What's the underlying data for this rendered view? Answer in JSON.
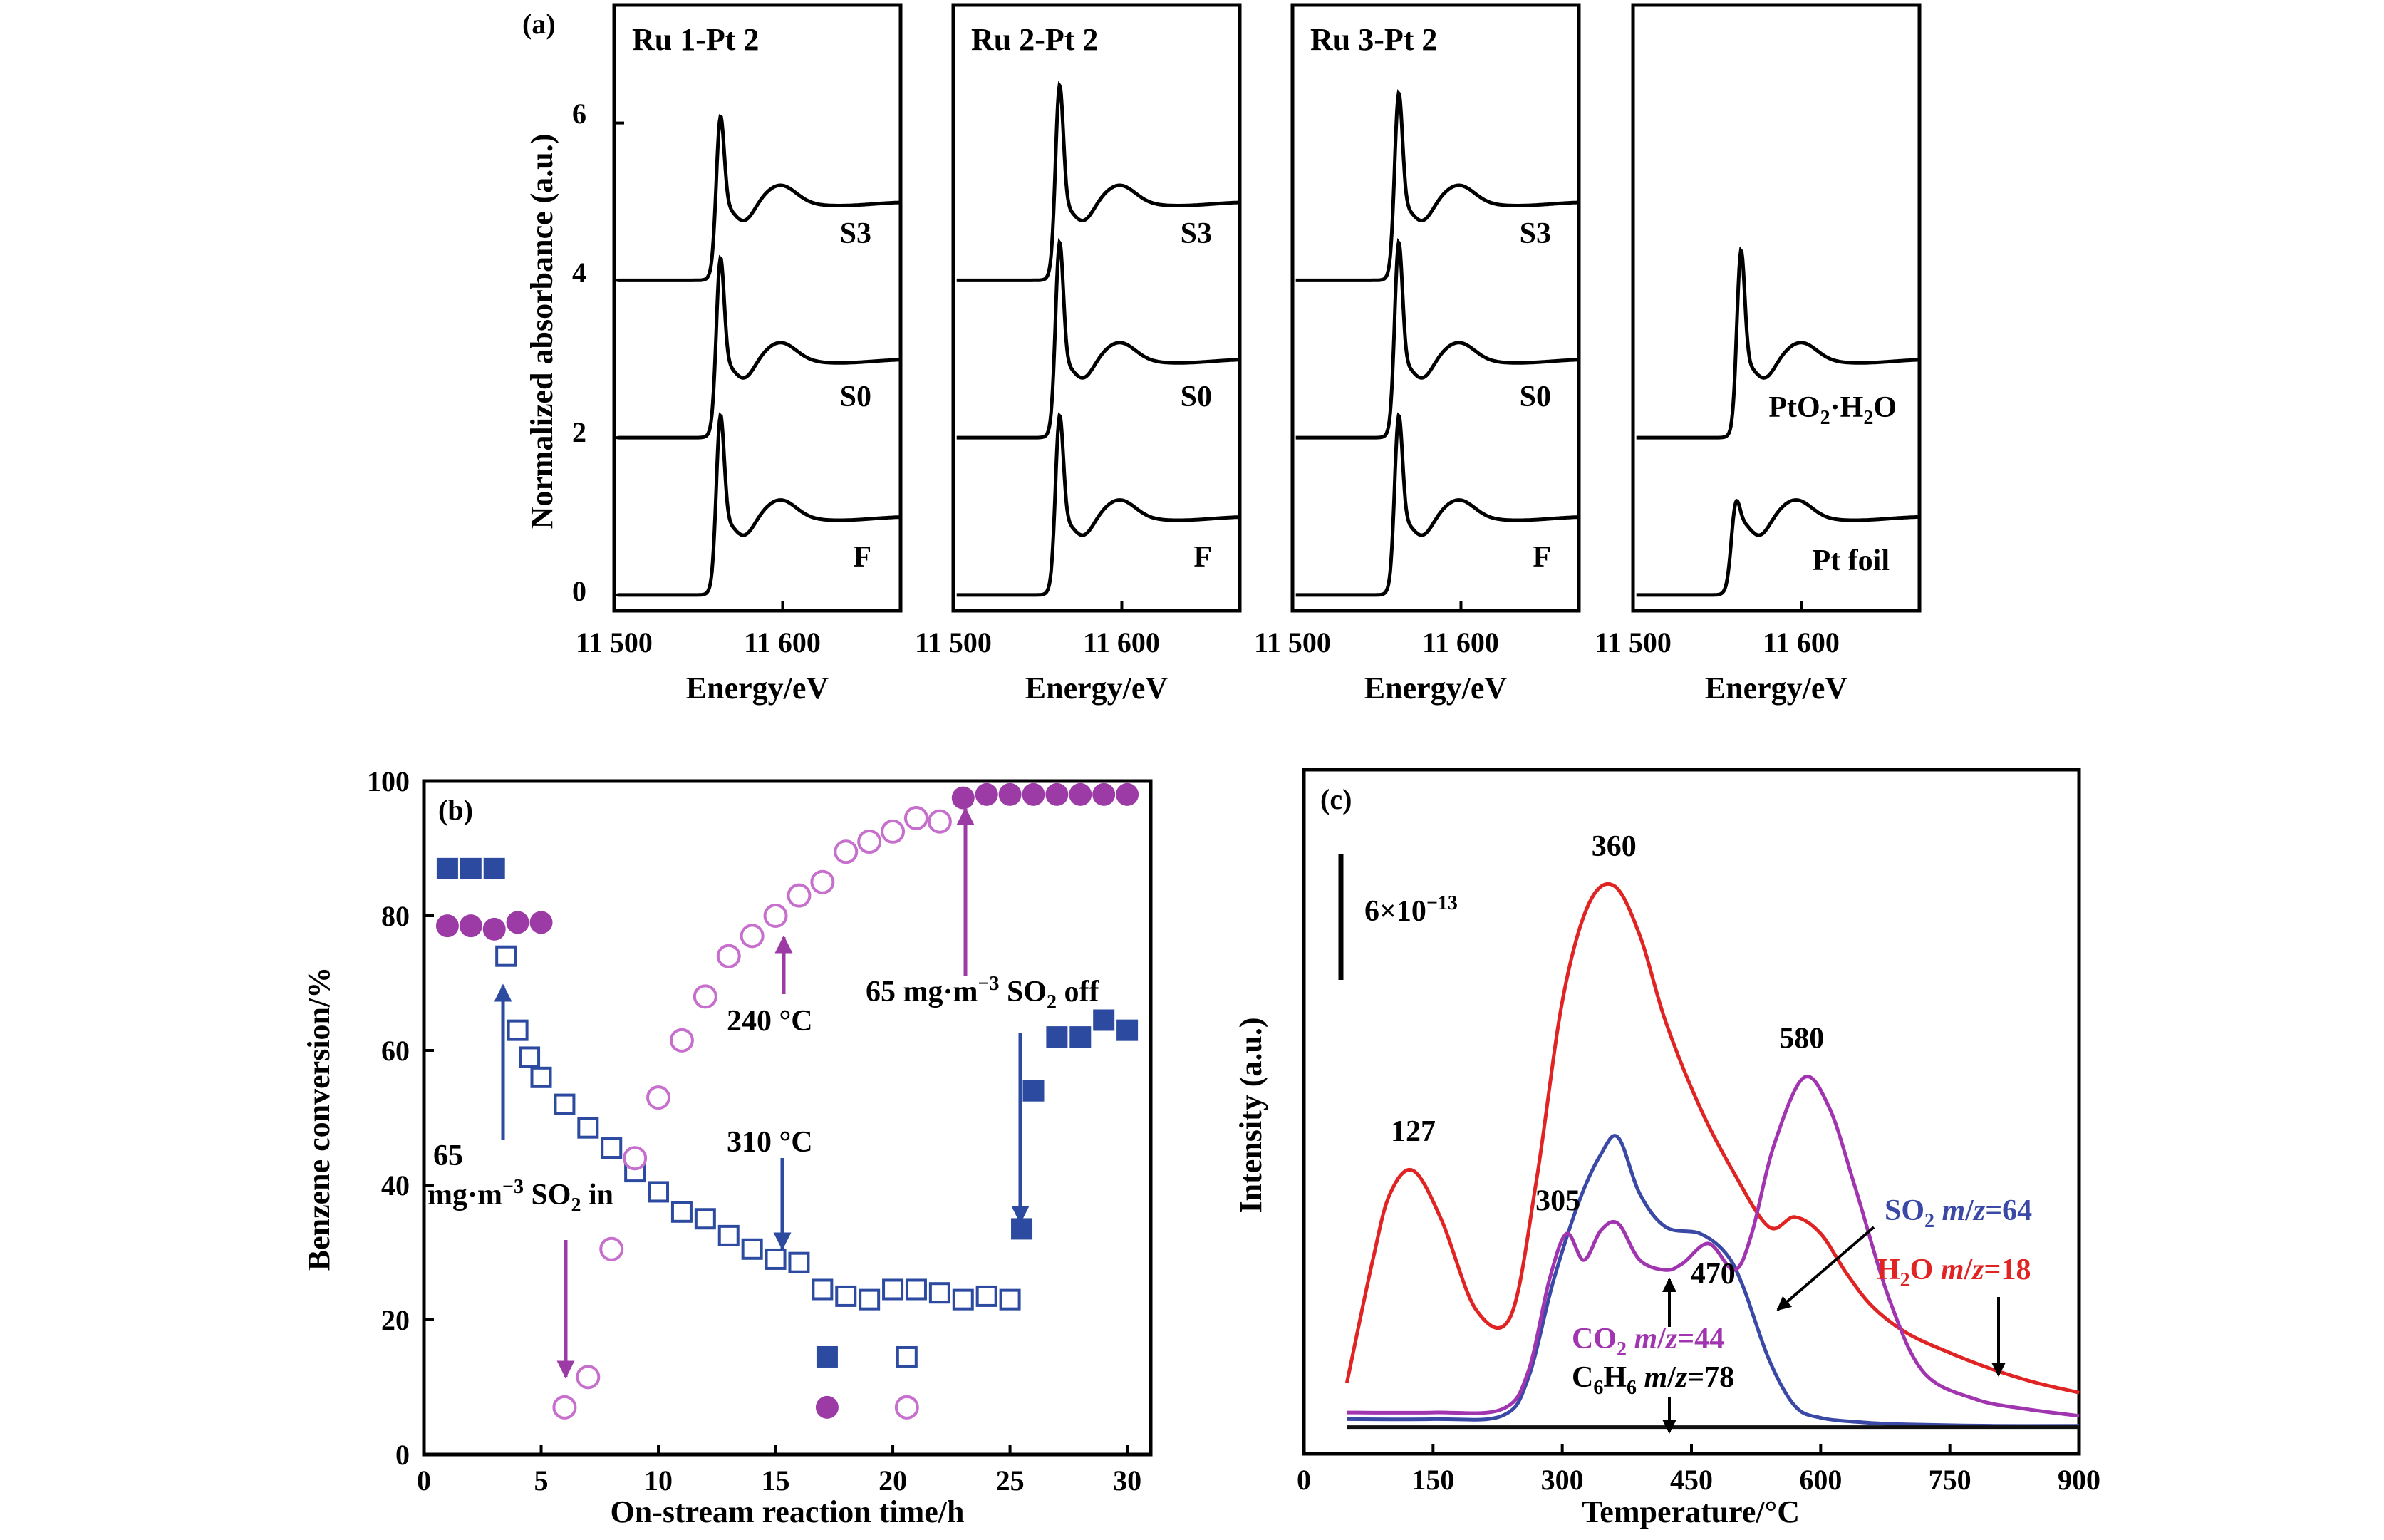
{
  "chart_data": [
    {
      "id": "a",
      "panel_label": "(a)",
      "type": "line",
      "ylabel": "Normalized absorbance (a.u.)",
      "xlabel": "Energy/eV",
      "xlim": [
        11500,
        11670
      ],
      "ylim": [
        -0.2,
        7.5
      ],
      "yticks": [
        0,
        2,
        4,
        6
      ],
      "xtick_labels": [
        "11 500",
        "11 600"
      ],
      "xtick_values": [
        11500,
        11600
      ],
      "subplots": [
        {
          "title": "Ru 1-Pt 2",
          "series": [
            {
              "name": "S3",
              "offset": 4,
              "peak_height": 2.2,
              "wl_x": 11563
            },
            {
              "name": "S0",
              "offset": 2,
              "peak_height": 2.4,
              "wl_x": 11563
            },
            {
              "name": "F",
              "offset": 0,
              "peak_height": 2.4,
              "wl_x": 11563
            }
          ]
        },
        {
          "title": "Ru 2-Pt 2",
          "series": [
            {
              "name": "S3",
              "offset": 4,
              "peak_height": 2.6,
              "wl_x": 11563
            },
            {
              "name": "S0",
              "offset": 2,
              "peak_height": 2.6,
              "wl_x": 11563
            },
            {
              "name": "F",
              "offset": 0,
              "peak_height": 2.4,
              "wl_x": 11563
            }
          ]
        },
        {
          "title": "Ru 3-Pt 2",
          "series": [
            {
              "name": "S3",
              "offset": 4,
              "peak_height": 2.5,
              "wl_x": 11563
            },
            {
              "name": "S0",
              "offset": 2,
              "peak_height": 2.6,
              "wl_x": 11563
            },
            {
              "name": "F",
              "offset": 0,
              "peak_height": 2.4,
              "wl_x": 11563
            }
          ]
        },
        {
          "title": "",
          "series": [
            {
              "name": "PtO₂·H₂O",
              "offset": 2,
              "peak_height": 2.5,
              "wl_x": 11564
            },
            {
              "name": "Pt foil",
              "offset": 0,
              "peak_height": 1.3,
              "wl_x": 11561
            }
          ]
        }
      ],
      "series_labels": {
        "s3": "S3",
        "s0": "S0",
        "f": "F",
        "pto2_pre": "PtO",
        "pto2_sub": "2",
        "pto2_mid": "·H",
        "pto2_sub2": "2",
        "pto2_post": "O",
        "ptfoil": "Pt foil"
      }
    },
    {
      "id": "b",
      "panel_label": "(b)",
      "type": "scatter",
      "xlabel": "On-stream reaction time/h",
      "ylabel": "Benzene conversion/%",
      "xlim": [
        0,
        31
      ],
      "ylim": [
        0,
        100
      ],
      "xticks": [
        0,
        5,
        10,
        15,
        20,
        25,
        30
      ],
      "yticks": [
        0,
        20,
        40,
        60,
        80,
        100
      ],
      "series": [
        {
          "name": "310 °C filled",
          "marker": "square-filled",
          "color": "#2b4aa0",
          "x": [
            1,
            2,
            3,
            25.5,
            26,
            27,
            28,
            29,
            30
          ],
          "y": [
            87,
            87,
            87,
            33.5,
            54,
            62,
            62,
            64.5,
            63
          ]
        },
        {
          "name": "310 °C open",
          "marker": "square-open",
          "color": "#2b4aa0",
          "x": [
            3.5,
            4,
            4.5,
            5,
            6,
            7,
            8,
            9,
            10,
            11,
            12,
            13,
            14,
            15,
            16,
            17,
            18,
            19,
            20,
            21,
            22,
            23,
            24,
            25
          ],
          "y": [
            74,
            63,
            59,
            56,
            52,
            48.5,
            45.5,
            42,
            39,
            36,
            35,
            32.5,
            30.5,
            29,
            28.5,
            24.5,
            23.5,
            23,
            24.5,
            24.5,
            24,
            23,
            23.5,
            23
          ]
        },
        {
          "name": "240 °C filled",
          "marker": "circle-filled",
          "color": "#9c3aa6",
          "x": [
            1,
            2,
            3,
            4,
            5,
            23,
            24,
            25,
            26,
            27,
            28,
            29,
            30
          ],
          "y": [
            78.5,
            78.5,
            78,
            79,
            79,
            97.5,
            98,
            98,
            98,
            98,
            98,
            98,
            98
          ]
        },
        {
          "name": "240 °C open",
          "marker": "circle-open",
          "color": "#c76fcc",
          "x": [
            6,
            7,
            8,
            9,
            10,
            11,
            12,
            13,
            14,
            15,
            16,
            17,
            18,
            19,
            20,
            21,
            22
          ],
          "y": [
            7,
            11.5,
            30.5,
            44,
            53,
            61.5,
            68,
            74,
            77,
            80,
            83,
            85,
            89.5,
            91,
            92.5,
            94.5,
            94
          ]
        }
      ],
      "legend_markers": [
        {
          "marker": "square-filled",
          "color": "#2b4aa0",
          "x": 17.2,
          "y": 14.5
        },
        {
          "marker": "square-open",
          "color": "#2b4aa0",
          "x": 20.6,
          "y": 14.5
        },
        {
          "marker": "circle-filled",
          "color": "#9c3aa6",
          "x": 17.2,
          "y": 7
        },
        {
          "marker": "circle-open",
          "color": "#c76fcc",
          "x": 20.6,
          "y": 7
        }
      ],
      "annotations": {
        "temp_240": "240 °C",
        "temp_310": "310 °C",
        "so2_off_pre": "65 mg·m",
        "so2_off_sup": "−3",
        "so2_off_mid": " SO",
        "so2_off_sub": "2",
        "so2_off_post": " off",
        "so2_in_line1": "65",
        "so2_in_pre": "mg·m",
        "so2_in_sup": "−3",
        "so2_in_mid": " SO",
        "so2_in_sub": "2",
        "so2_in_post": " in"
      }
    },
    {
      "id": "c",
      "panel_label": "(c)",
      "type": "line",
      "xlabel": "Temperature/°C",
      "ylabel": "Intensity (a.u.)",
      "xlim": [
        0,
        900
      ],
      "ylim": [
        0,
        10
      ],
      "xticks": [
        0,
        150,
        300,
        450,
        600,
        750,
        900
      ],
      "scale_bar_base": "6×10",
      "scale_bar_exp": "−13",
      "series": [
        {
          "name": "H₂O m/z=18",
          "color": "#e02424",
          "x": [
            50,
            80,
            100,
            127,
            160,
            200,
            240,
            270,
            300,
            330,
            360,
            390,
            420,
            460,
            500,
            540,
            570,
            600,
            630,
            660,
            700,
            750,
            800,
            850,
            900
          ],
          "y": [
            0.75,
            2.6,
            3.6,
            3.95,
            3.2,
            1.85,
            1.75,
            3.8,
            6.5,
            7.95,
            8.25,
            7.5,
            6.2,
            4.9,
            3.9,
            3.1,
            3.25,
            3.0,
            2.4,
            1.9,
            1.5,
            1.2,
            0.95,
            0.75,
            0.6
          ]
        },
        {
          "name": "SO₂ m/z=64",
          "color": "#3a49a6",
          "x": [
            50,
            150,
            230,
            260,
            290,
            320,
            345,
            365,
            390,
            420,
            460,
            490,
            510,
            540,
            570,
            600,
            650,
            700,
            800,
            900
          ],
          "y": [
            0.2,
            0.2,
            0.25,
            0.8,
            2.3,
            3.5,
            4.2,
            4.45,
            3.6,
            3.1,
            3.0,
            2.7,
            2.2,
            1.1,
            0.4,
            0.22,
            0.15,
            0.12,
            0.1,
            0.1
          ]
        },
        {
          "name": "CO₂ m/z=44",
          "color": "#a135b0",
          "x": [
            50,
            150,
            230,
            260,
            285,
            305,
            325,
            345,
            365,
            390,
            420,
            440,
            470,
            500,
            520,
            545,
            580,
            610,
            640,
            680,
            720,
            780,
            840,
            900
          ],
          "y": [
            0.3,
            0.3,
            0.35,
            0.9,
            2.3,
            3.0,
            2.6,
            3.05,
            3.15,
            2.6,
            2.45,
            2.55,
            2.85,
            2.45,
            3.0,
            4.3,
            5.35,
            4.9,
            3.7,
            2.0,
            0.9,
            0.5,
            0.35,
            0.25
          ]
        },
        {
          "name": "C₆H₆ m/z=78",
          "color": "#111111",
          "x": [
            50,
            900
          ],
          "y": [
            0.08,
            0.08
          ]
        }
      ],
      "peak_labels": [
        "127",
        "305",
        "360",
        "470",
        "580"
      ],
      "peak_positions": [
        {
          "x": 127,
          "y": 4.4
        },
        {
          "x": 295,
          "y": 3.35
        },
        {
          "x": 360,
          "y": 8.7
        },
        {
          "x": 475,
          "y": 2.25
        },
        {
          "x": 578,
          "y": 5.8
        }
      ],
      "legend": {
        "so2_pre": "SO",
        "so2_sub": "2",
        "so2_m": " m",
        "so2_slash": "/",
        "so2_z": "z",
        "so2_val": "=64",
        "h2o_pre": "H",
        "h2o_sub": "2",
        "h2o_post": "O ",
        "h2o_m": "m",
        "h2o_slash": "/",
        "h2o_z": "z",
        "h2o_val": "=18",
        "co2_pre": "CO",
        "co2_sub": "2",
        "co2_m": " m",
        "co2_slash": "/",
        "co2_z": "z",
        "co2_val": "=44",
        "c6h6_c": "C",
        "c6h6_sub1": "6",
        "c6h6_h": "H",
        "c6h6_sub2": "6",
        "c6h6_m": " m",
        "c6h6_slash": "/",
        "c6h6_z": "z",
        "c6h6_val": "=78"
      }
    }
  ]
}
